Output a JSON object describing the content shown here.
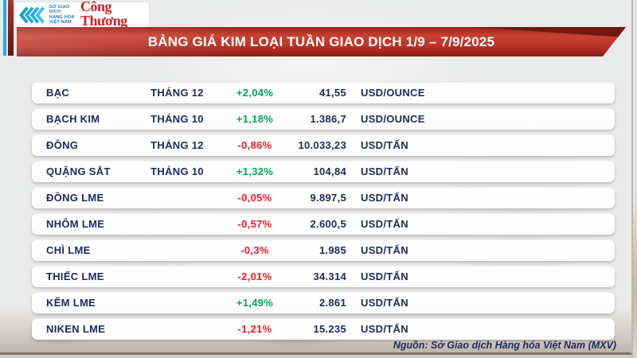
{
  "header": {
    "mxv_logo": {
      "org_name": "SỞ GIAO DỊCH\nHÀNG HÓA\nVIỆT NAM"
    },
    "congthuong_logo": "Công Thương",
    "title": "BẢNG GIÁ KIM LOẠI TUẦN GIAO DỊCH 1/9 – 7/9/2025"
  },
  "footer": {
    "source": "Nguồn: Sở Giao dịch Hàng hóa Việt Nam (MXV)"
  },
  "colors": {
    "up_green": "#00a651",
    "down_red": "#ec1c24",
    "text_navy": "#1b2a5e",
    "title_bar_red": "#bd3529",
    "accent_cyan": "#29abe2",
    "congthuong_red": "#ce2027"
  },
  "chart_data": {
    "type": "table",
    "title": "BẢNG GIÁ KIM LOẠI TUẦN GIAO DỊCH 1/9 – 7/9/2025",
    "rows": [
      {
        "name": "BẠC",
        "month": "THÁNG 12",
        "change": "+2,04%",
        "change_value": 2.04,
        "direction": "up",
        "price": "41,55",
        "price_value": 41.55,
        "unit": "USD/OUNCE"
      },
      {
        "name": "BẠCH KIM",
        "month": "THÁNG 10",
        "change": "+1,18%",
        "change_value": 1.18,
        "direction": "up",
        "price": "1.386,7",
        "price_value": 1386.7,
        "unit": "USD/OUNCE"
      },
      {
        "name": "ĐỒNG",
        "month": "THÁNG 12",
        "change": "-0,86%",
        "change_value": -0.86,
        "direction": "down",
        "price": "10.033,23",
        "price_value": 10033.23,
        "unit": "USD/TẤN"
      },
      {
        "name": "QUẶNG SẮT",
        "month": "THÁNG 10",
        "change": "+1,32%",
        "change_value": 1.32,
        "direction": "up",
        "price": "104,84",
        "price_value": 104.84,
        "unit": "USD/TẤN"
      },
      {
        "name": "ĐỒNG LME",
        "month": "",
        "change": "-0,05%",
        "change_value": -0.05,
        "direction": "down",
        "price": "9.897,5",
        "price_value": 9897.5,
        "unit": "USD/TẤN"
      },
      {
        "name": "NHÔM LME",
        "month": "",
        "change": "-0,57%",
        "change_value": -0.57,
        "direction": "down",
        "price": "2.600,5",
        "price_value": 2600.5,
        "unit": "USD/TẤN"
      },
      {
        "name": "CHÌ LME",
        "month": "",
        "change": "-0,3%",
        "change_value": -0.3,
        "direction": "down",
        "price": "1.985",
        "price_value": 1985,
        "unit": "USD/TẤN"
      },
      {
        "name": "THIẾC LME",
        "month": "",
        "change": "-2,01%",
        "change_value": -2.01,
        "direction": "down",
        "price": "34.314",
        "price_value": 34314,
        "unit": "USD/TẤN"
      },
      {
        "name": "KẼM LME",
        "month": "",
        "change": "+1,49%",
        "change_value": 1.49,
        "direction": "up",
        "price": "2.861",
        "price_value": 2861,
        "unit": "USD/TẤN"
      },
      {
        "name": "NIKEN LME",
        "month": "",
        "change": "-1,21%",
        "change_value": -1.21,
        "direction": "down",
        "price": "15.235",
        "price_value": 15235,
        "unit": "USD/TẤN"
      }
    ]
  }
}
